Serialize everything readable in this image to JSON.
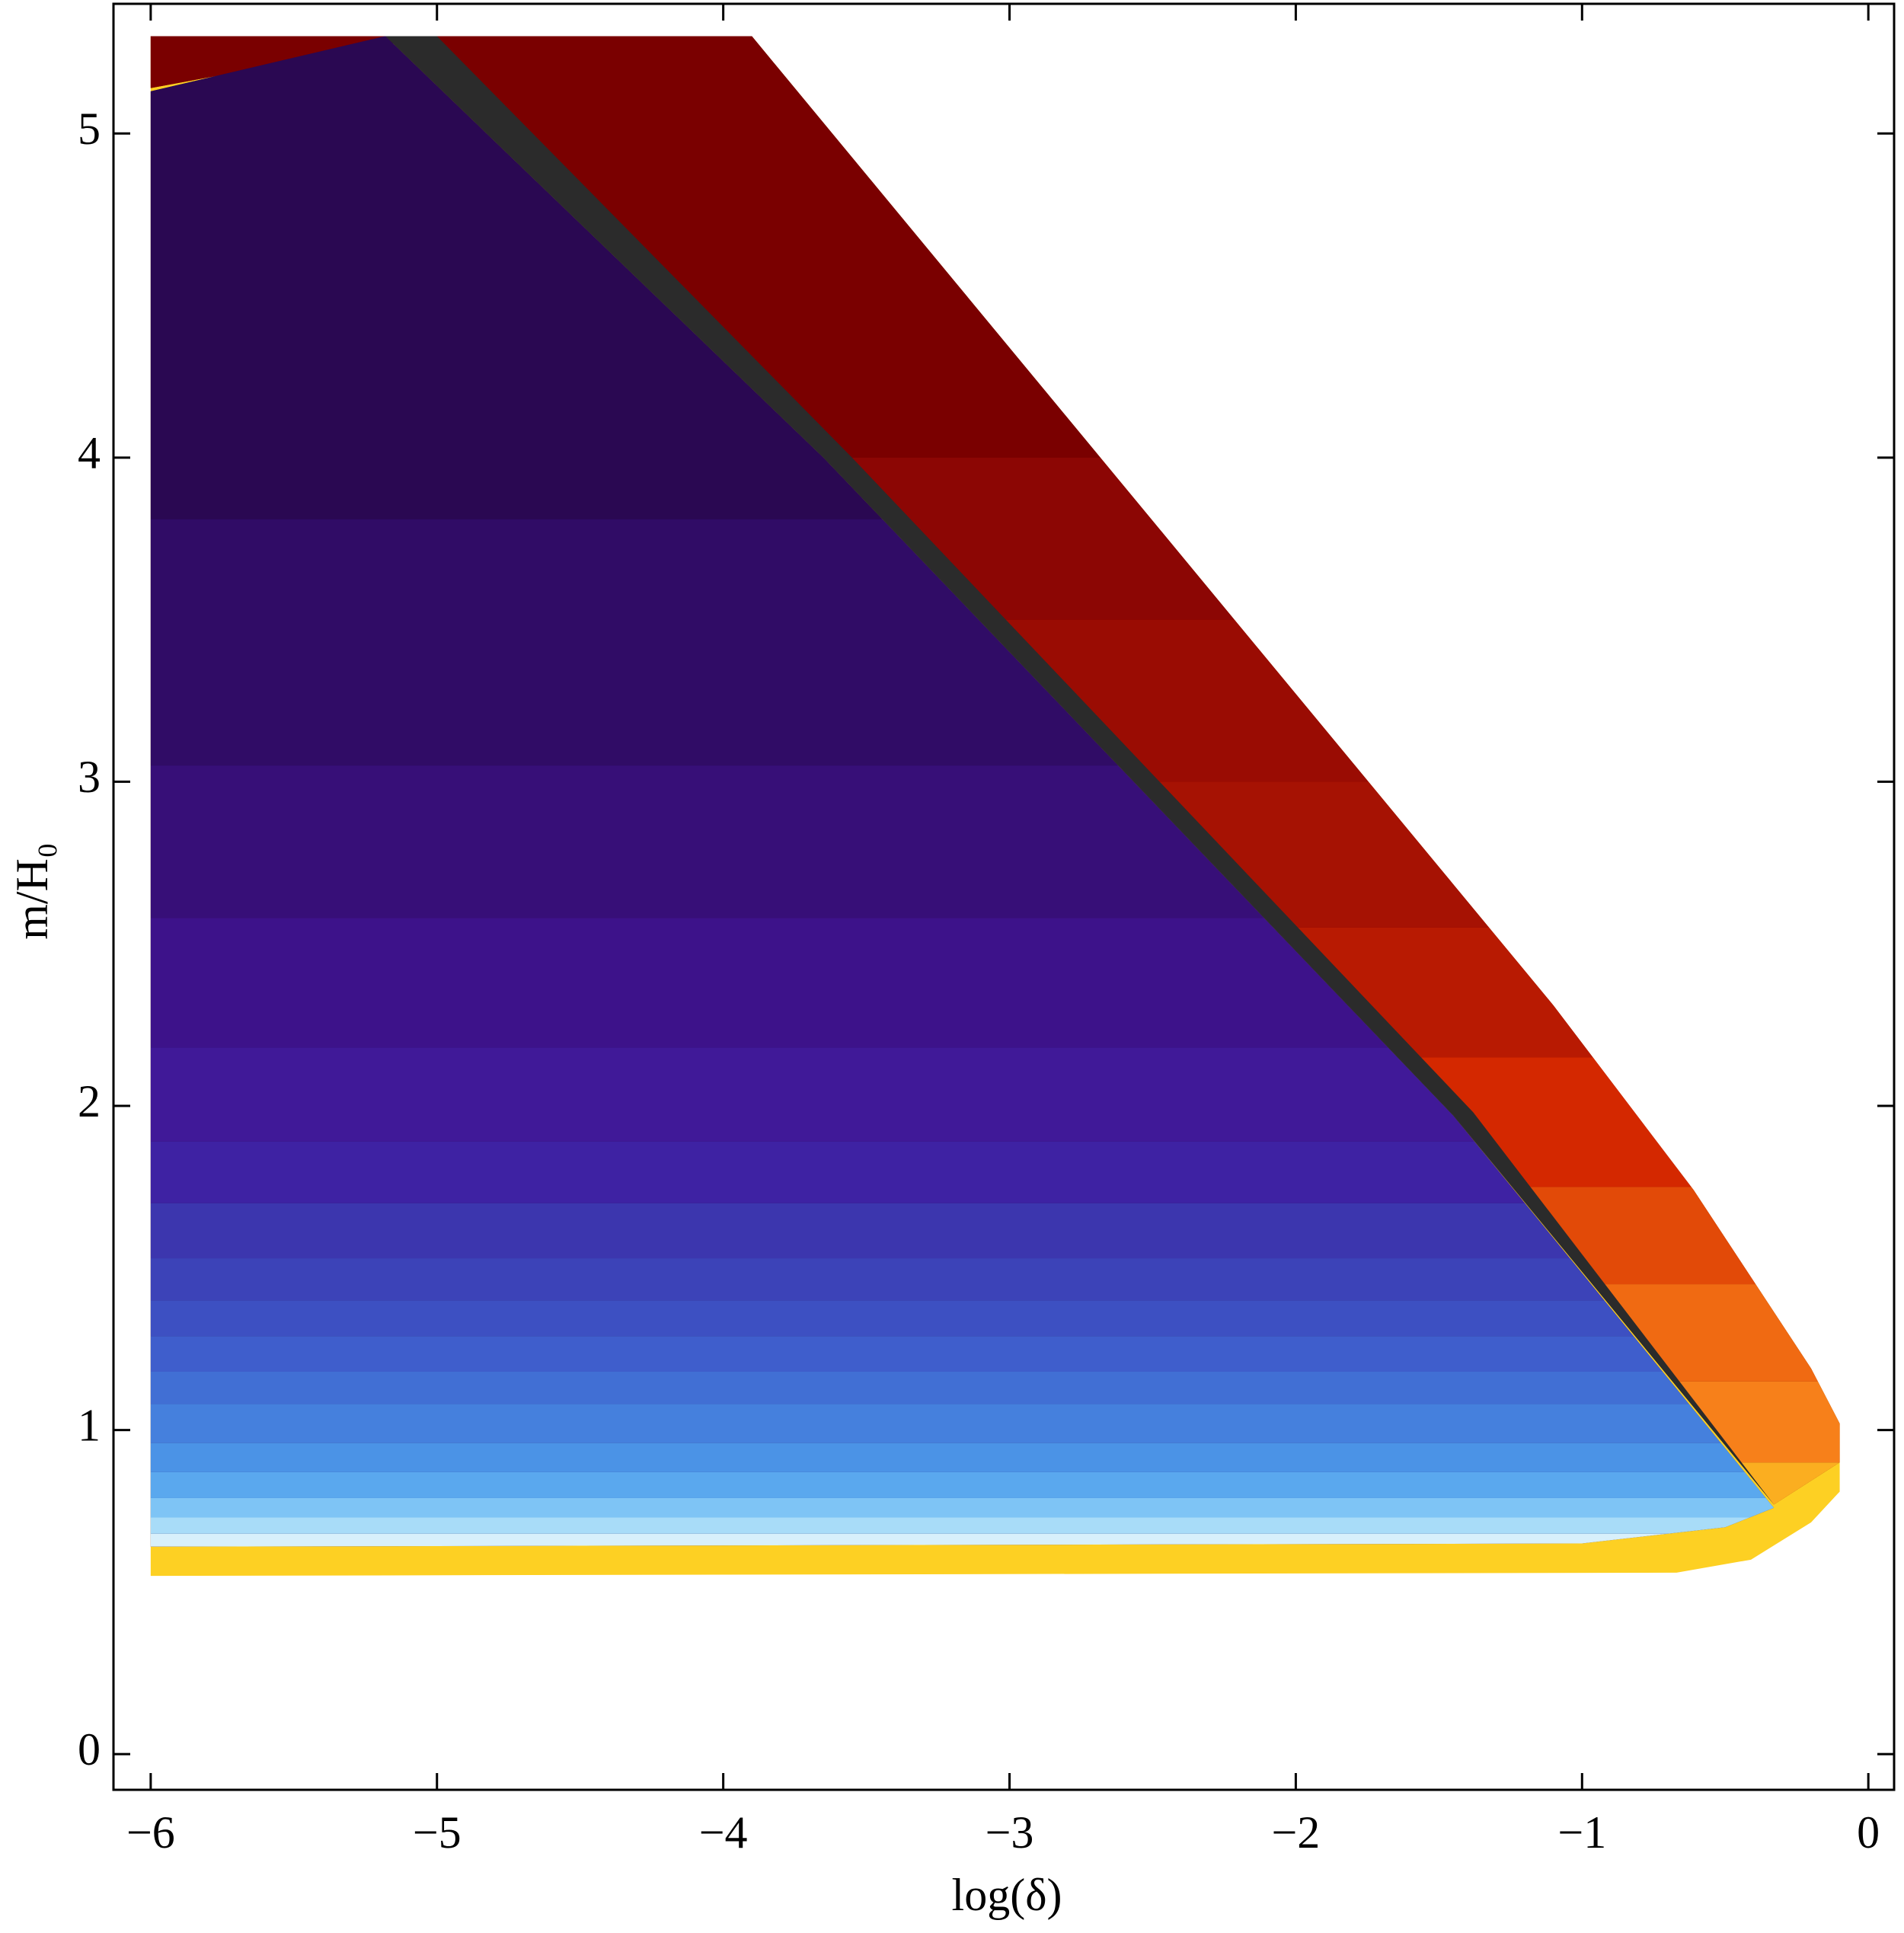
{
  "chart_data": {
    "type": "contour",
    "xlabel": "log(δ)",
    "ylabel": "m/H₀",
    "xlim": [
      -6.13,
      0.09
    ],
    "ylim": [
      -0.11,
      5.4
    ],
    "xticks": [
      {
        "value": -6,
        "label": "−6"
      },
      {
        "value": -5,
        "label": "−5"
      },
      {
        "value": -4,
        "label": "−4"
      },
      {
        "value": -3,
        "label": "−3"
      },
      {
        "value": -2,
        "label": "−2"
      },
      {
        "value": -1,
        "label": "−1"
      },
      0
    ],
    "yticks": [
      0,
      1,
      2,
      3,
      4,
      5
    ],
    "regions": [
      {
        "color": "#fdd023",
        "x": [
          -6,
          -3.9,
          -1.1,
          -0.61,
          -0.2,
          -0.1,
          -0.1,
          -0.2,
          -0.41,
          -0.67,
          -6
        ],
        "y": [
          5.3,
          5.3,
          2.31,
          1.74,
          1.19,
          1.02,
          0.81,
          0.715,
          0.6,
          0.56,
          0.55
        ]
      },
      {
        "color": "#7a0000",
        "x": [
          -6,
          -3.9,
          -1.1,
          -0.61,
          -0.2,
          -0.1,
          -0.1,
          -0.33,
          -1.42,
          -3.6,
          -5.08,
          -6
        ],
        "y": [
          5.3,
          5.3,
          2.31,
          1.74,
          1.19,
          1.02,
          0.9,
          0.77,
          1.97,
          4.02,
          5.29,
          5.14
        ],
        "bands": [
          {
            "color": "#fbae20",
            "y": [
              0.6,
              0.9
            ]
          },
          {
            "color": "#f7801a",
            "y": [
              0.9,
              1.15
            ]
          },
          {
            "color": "#f06a12",
            "y": [
              1.15,
              1.45
            ]
          },
          {
            "color": "#e24a08",
            "y": [
              1.45,
              1.75
            ]
          },
          {
            "color": "#d42800",
            "y": [
              1.75,
              2.15
            ]
          },
          {
            "color": "#b81a02",
            "y": [
              2.15,
              2.55
            ]
          },
          {
            "color": "#a61203",
            "y": [
              2.55,
              3.0
            ]
          },
          {
            "color": "#9a0c03",
            "y": [
              3.0,
              3.5
            ]
          },
          {
            "color": "#8c0604",
            "y": [
              3.5,
              4.0
            ]
          },
          {
            "color": "#7a0000",
            "y": [
              4.0,
              5.4
            ]
          }
        ]
      },
      {
        "color": "#2a0852",
        "x": [
          -6,
          -5.18,
          -3.65,
          -1.45,
          -0.33,
          -0.5,
          -1.0,
          -6
        ],
        "y": [
          5.13,
          5.3,
          4.0,
          1.97,
          0.76,
          0.7,
          0.65,
          0.64
        ],
        "bands": [
          {
            "color": "#d8f0fb",
            "y": [
              0.64,
              0.68
            ]
          },
          {
            "color": "#a8dcf8",
            "y": [
              0.68,
              0.73
            ]
          },
          {
            "color": "#7ec4f5",
            "y": [
              0.73,
              0.79
            ]
          },
          {
            "color": "#5aa8ee",
            "y": [
              0.79,
              0.87
            ]
          },
          {
            "color": "#4b93e6",
            "y": [
              0.87,
              0.96
            ]
          },
          {
            "color": "#4580dd",
            "y": [
              0.96,
              1.08
            ]
          },
          {
            "color": "#416fd4",
            "y": [
              1.08,
              1.18
            ]
          },
          {
            "color": "#3f5ecc",
            "y": [
              1.18,
              1.29
            ]
          },
          {
            "color": "#3d50c2",
            "y": [
              1.29,
              1.4
            ]
          },
          {
            "color": "#3c43b8",
            "y": [
              1.4,
              1.53
            ]
          },
          {
            "color": "#3c36ae",
            "y": [
              1.53,
              1.7
            ]
          },
          {
            "color": "#3e22a3",
            "y": [
              1.7,
              1.89
            ]
          },
          {
            "color": "#401998",
            "y": [
              1.89,
              2.18
            ]
          },
          {
            "color": "#3d128a",
            "y": [
              2.18,
              2.58
            ]
          },
          {
            "color": "#370f78",
            "y": [
              2.58,
              3.05
            ]
          },
          {
            "color": "#300c66",
            "y": [
              3.05,
              3.81
            ]
          },
          {
            "color": "#2a0852",
            "y": [
              3.81,
              5.4
            ]
          }
        ]
      },
      {
        "color": "#2b2b2b",
        "x": [
          -5.0,
          -3.55,
          -1.38,
          -0.33,
          -1.45,
          -3.65,
          -5.18
        ],
        "y": [
          5.3,
          4.0,
          1.98,
          0.77,
          1.97,
          4.0,
          5.3
        ]
      }
    ]
  }
}
